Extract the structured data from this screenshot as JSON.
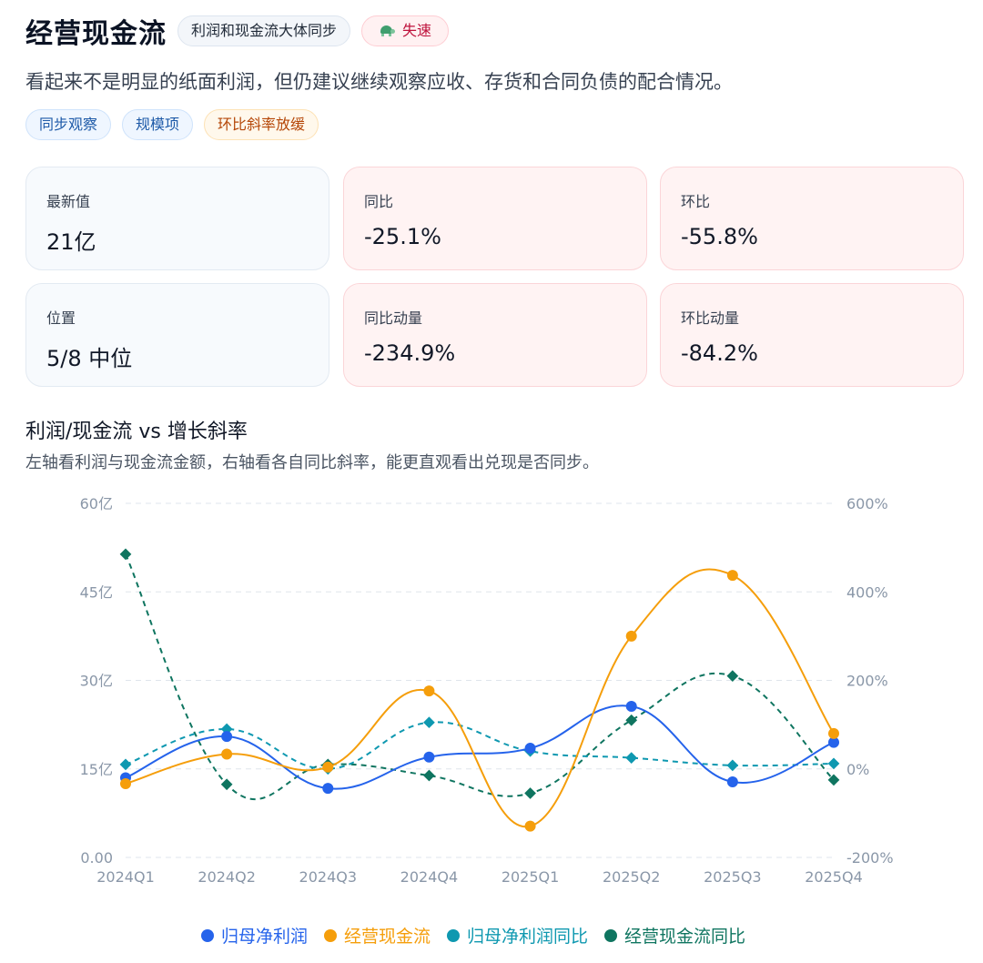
{
  "header": {
    "title": "经营现金流",
    "sync_badge": "利润和现金流大体同步",
    "status_badge": "失速",
    "status_icon": "turtle-icon"
  },
  "description": "看起来不是明显的纸面利润，但仍建议继续观察应收、存货和合同负债的配合情况。",
  "tags": [
    "同步观察",
    "规模项",
    "环比斜率放缓"
  ],
  "metrics": [
    {
      "label": "最新值",
      "value": "21亿"
    },
    {
      "label": "同比",
      "value": "-25.1%"
    },
    {
      "label": "环比",
      "value": "-55.8%"
    },
    {
      "label": "位置",
      "value": "5/8 中位"
    },
    {
      "label": "同比动量",
      "value": "-234.9%"
    },
    {
      "label": "环比动量",
      "value": "-84.2%"
    }
  ],
  "chart_section": {
    "title": "利润/现金流 vs 增长斜率",
    "subtitle": "左轴看利润与现金流金额，右轴看各自同比斜率，能更直观看出兑现是否同步。"
  },
  "colors": {
    "net_profit": "#2563eb",
    "op_cashflow": "#f59e0b",
    "net_profit_yoy": "#0e98b0",
    "op_cashflow_yoy": "#0f7560",
    "grid": "#dfe5ec",
    "axis_text": "#8a97a8"
  },
  "chart_data": {
    "type": "line",
    "categories": [
      "2024Q1",
      "2024Q2",
      "2024Q3",
      "2024Q4",
      "2025Q1",
      "2025Q2",
      "2025Q3",
      "2025Q4"
    ],
    "y_left": {
      "ticks": [
        "0.00",
        "15亿",
        "30亿",
        "45亿",
        "60亿"
      ],
      "range": [
        0,
        60
      ]
    },
    "y_right": {
      "ticks": [
        "-200%",
        "0%",
        "200%",
        "400%",
        "600%"
      ],
      "range": [
        -200,
        600
      ]
    },
    "grid": true,
    "legend_position": "bottom",
    "series": [
      {
        "name": "归母净利润",
        "axis": "left",
        "style": "solid",
        "values": [
          13.5,
          20.5,
          11.7,
          17.0,
          18.5,
          25.6,
          12.8,
          19.5
        ]
      },
      {
        "name": "经营现金流",
        "axis": "left",
        "style": "solid",
        "values": [
          12.5,
          17.5,
          15.3,
          28.2,
          5.3,
          37.5,
          47.8,
          21.0
        ]
      },
      {
        "name": "归母净利润同比",
        "axis": "right",
        "style": "dashed",
        "values": [
          10,
          90,
          0,
          105,
          40,
          25,
          8,
          12
        ]
      },
      {
        "name": "经营现金流同比",
        "axis": "right",
        "style": "dashed",
        "values": [
          485,
          -35,
          10,
          -15,
          -55,
          110,
          210,
          -25
        ]
      }
    ]
  }
}
